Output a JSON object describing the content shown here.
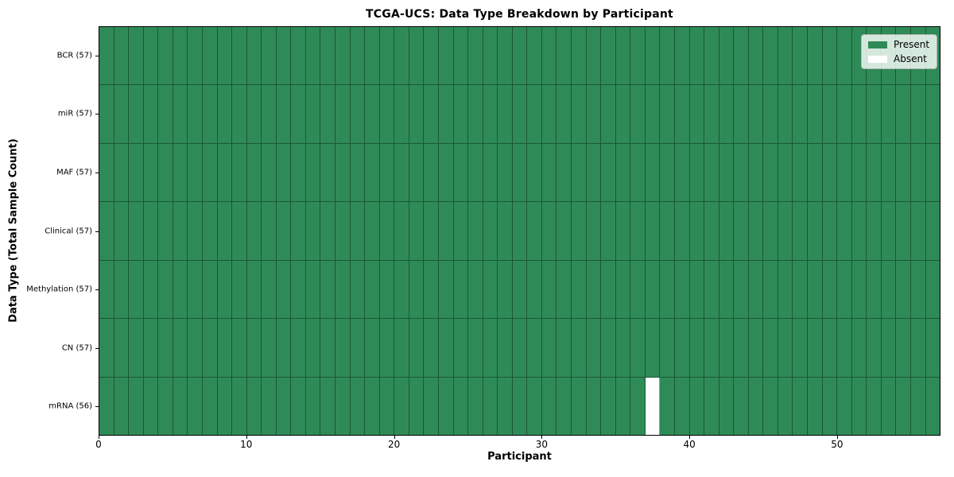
{
  "figure": {
    "title": "TCGA-UCS: Data Type Breakdown by Participant",
    "xlabel": "Participant",
    "ylabel": "Data Type (Total Sample Count)"
  },
  "chart_data": {
    "type": "heatmap",
    "title": "TCGA-UCS: Data Type Breakdown by Participant",
    "xlabel": "Participant",
    "ylabel": "Data Type (Total Sample Count)",
    "x_ticks": [
      0,
      10,
      20,
      30,
      40,
      50
    ],
    "x_range": [
      0,
      57
    ],
    "participants": 57,
    "rows": [
      {
        "label": "BCR (57)",
        "present_count": 57,
        "absent_participants": []
      },
      {
        "label": "miR (57)",
        "present_count": 57,
        "absent_participants": []
      },
      {
        "label": "MAF (57)",
        "present_count": 57,
        "absent_participants": []
      },
      {
        "label": "Clinical (57)",
        "present_count": 57,
        "absent_participants": []
      },
      {
        "label": "Methylation (57)",
        "present_count": 57,
        "absent_participants": []
      },
      {
        "label": "CN (57)",
        "present_count": 57,
        "absent_participants": []
      },
      {
        "label": "mRNA (56)",
        "present_count": 56,
        "absent_participants": [
          37
        ]
      }
    ],
    "legend": {
      "position": "upper right",
      "entries": [
        {
          "label": "Present",
          "color": "#2e8b57"
        },
        {
          "label": "Absent",
          "color": "#ffffff"
        }
      ]
    },
    "colors": {
      "present": "#2e8b57",
      "absent": "#ffffff",
      "grid_line": "rgba(0,0,0,0.38)",
      "frame": "#000000",
      "background": "#ffffff"
    },
    "grid": true
  }
}
